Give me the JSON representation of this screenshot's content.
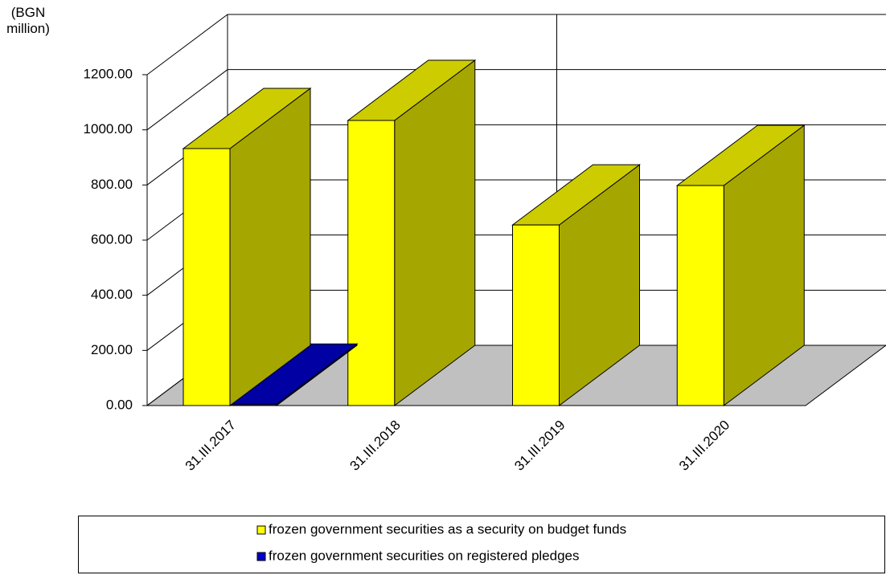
{
  "chart_data": {
    "type": "bar3d",
    "y_label": "(BGN million)",
    "categories": [
      "31.III.2017",
      "31.III.2018",
      "31.III.2019",
      "31.III.2020"
    ],
    "series": [
      {
        "name": "frozen government securities as a security on budget funds",
        "color": "#ffff00",
        "values": [
          932,
          1034,
          655,
          798
        ]
      },
      {
        "name": "frozen government securities on registered pledges",
        "color": "#0000cc",
        "values": [
          5,
          null,
          null,
          null
        ]
      }
    ],
    "ylim": [
      0,
      1200
    ],
    "yticks": [
      {
        "value": 0,
        "label": "0.00"
      },
      {
        "value": 200,
        "label": "200.00"
      },
      {
        "value": 400,
        "label": "400.00"
      },
      {
        "value": 600,
        "label": "600.00"
      },
      {
        "value": 800,
        "label": "800.00"
      },
      {
        "value": 1000,
        "label": "1000.00"
      },
      {
        "value": 1200,
        "label": "1200.00"
      }
    ],
    "grid": true
  }
}
